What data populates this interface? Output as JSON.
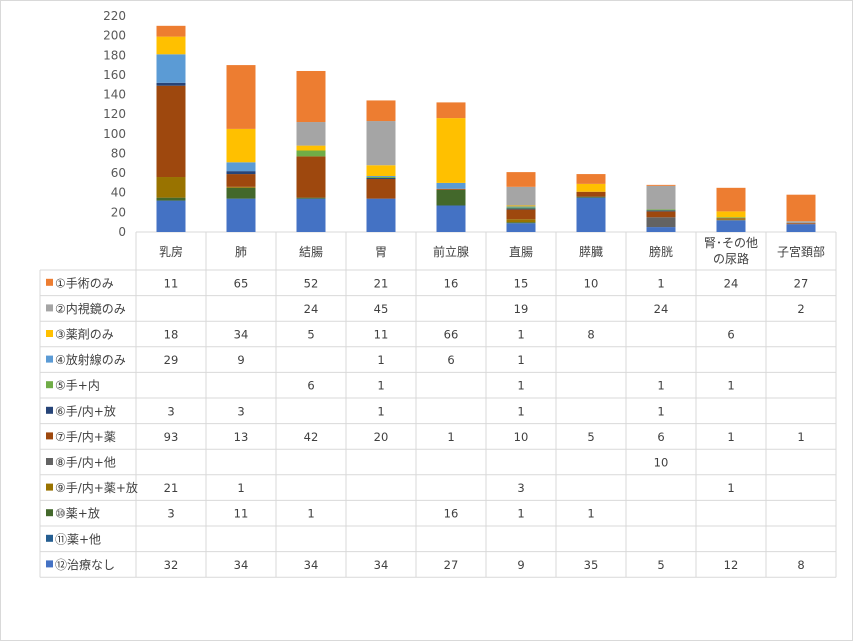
{
  "chart_data": {
    "type": "bar",
    "stacked": true,
    "with_data_table": true,
    "categories": [
      "乳房",
      "肺",
      "結腸",
      "胃",
      "前立腺",
      "直腸",
      "膵臓",
      "膀胱",
      "腎･その他の尿路",
      "子宮頚部"
    ],
    "category_lines": [
      [
        "乳房"
      ],
      [
        "肺"
      ],
      [
        "結腸"
      ],
      [
        "胃"
      ],
      [
        "前立腺"
      ],
      [
        "直腸"
      ],
      [
        "膵臓"
      ],
      [
        "膀胱"
      ],
      [
        "腎･その他",
        "の尿路"
      ],
      [
        "子宮頚部"
      ]
    ],
    "ylim": [
      0,
      220
    ],
    "yticks": [
      0,
      20,
      40,
      60,
      80,
      100,
      120,
      140,
      160,
      180,
      200,
      220
    ],
    "gridlines": false,
    "series": [
      {
        "name": "①手術のみ",
        "color": "#ED7D31",
        "values": [
          11,
          65,
          52,
          21,
          16,
          15,
          10,
          1,
          24,
          27
        ]
      },
      {
        "name": "②内視鏡のみ",
        "color": "#A5A5A5",
        "values": [
          null,
          null,
          24,
          45,
          null,
          19,
          null,
          24,
          null,
          2
        ]
      },
      {
        "name": "③薬剤のみ",
        "color": "#FFC000",
        "values": [
          18,
          34,
          5,
          11,
          66,
          1,
          8,
          null,
          6,
          null
        ]
      },
      {
        "name": "④放射線のみ",
        "color": "#5B9BD5",
        "values": [
          29,
          9,
          null,
          1,
          6,
          1,
          null,
          null,
          null,
          null
        ]
      },
      {
        "name": "⑤手+内",
        "color": "#70AD47",
        "values": [
          null,
          null,
          6,
          1,
          null,
          1,
          null,
          1,
          1,
          null
        ]
      },
      {
        "name": "⑥手/内+放",
        "color": "#264478",
        "values": [
          3,
          3,
          null,
          1,
          null,
          1,
          null,
          1,
          null,
          null
        ]
      },
      {
        "name": "⑦手/内+薬",
        "color": "#9E480E",
        "values": [
          93,
          13,
          42,
          20,
          1,
          10,
          5,
          6,
          1,
          1
        ]
      },
      {
        "name": "⑧手/内+他",
        "color": "#636363",
        "values": [
          null,
          null,
          null,
          null,
          null,
          null,
          null,
          10,
          null,
          null
        ]
      },
      {
        "name": "⑨手/内+薬+放",
        "color": "#997300",
        "values": [
          21,
          1,
          null,
          null,
          null,
          3,
          null,
          null,
          1,
          null
        ]
      },
      {
        "name": "⑩薬+放",
        "color": "#43682B",
        "values": [
          3,
          11,
          1,
          null,
          16,
          1,
          1,
          null,
          null,
          null
        ]
      },
      {
        "name": "⑪薬+他",
        "color": "#255E91",
        "values": [
          null,
          null,
          null,
          null,
          null,
          null,
          null,
          null,
          null,
          null
        ]
      },
      {
        "name": "⑫治療なし",
        "color": "#4472C4",
        "values": [
          32,
          34,
          34,
          34,
          27,
          9,
          35,
          5,
          12,
          8
        ]
      }
    ]
  }
}
